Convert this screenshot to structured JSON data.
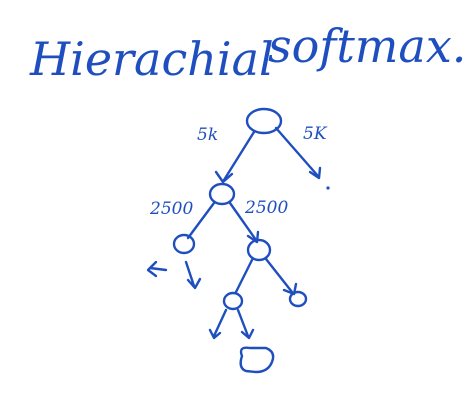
{
  "title_left": "Hierachial",
  "title_right": "softmax.",
  "edge_labels": {
    "root_left": "5k",
    "root_right": "5K",
    "level2_left": "2500",
    "level2_right": "2500"
  },
  "ink_color": "#1f4fbf"
}
